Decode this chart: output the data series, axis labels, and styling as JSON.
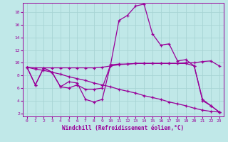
{
  "xlabel": "Windchill (Refroidissement éolien,°C)",
  "bg_color": "#c0e8e8",
  "grid_color": "#a8d4d4",
  "line_color": "#990099",
  "xlim": [
    -0.5,
    23.5
  ],
  "ylim": [
    1.5,
    19.5
  ],
  "xticks": [
    0,
    1,
    2,
    3,
    4,
    5,
    6,
    7,
    8,
    9,
    10,
    11,
    12,
    13,
    14,
    15,
    16,
    17,
    18,
    19,
    20,
    21,
    22,
    23
  ],
  "yticks": [
    2,
    4,
    6,
    8,
    10,
    12,
    14,
    16,
    18
  ],
  "series": [
    [
      9.3,
      6.5,
      9.2,
      8.5,
      6.2,
      7.0,
      6.8,
      4.2,
      3.8,
      4.2,
      9.7,
      16.7,
      17.5,
      19.0,
      19.3,
      14.6,
      12.8,
      13.0,
      10.3,
      10.5,
      9.5,
      4.2,
      3.2,
      2.2
    ],
    [
      9.3,
      6.5,
      9.2,
      8.5,
      6.2,
      6.0,
      6.5,
      5.8,
      5.8,
      6.0,
      9.7,
      9.8,
      9.8,
      9.9,
      9.9,
      9.9,
      9.9,
      9.9,
      9.9,
      9.9,
      9.5,
      4.0,
      3.2,
      2.2
    ],
    [
      9.3,
      9.2,
      9.2,
      9.2,
      9.2,
      9.2,
      9.2,
      9.2,
      9.2,
      9.3,
      9.5,
      9.7,
      9.8,
      9.9,
      9.9,
      9.9,
      9.9,
      9.9,
      9.9,
      10.0,
      10.0,
      10.2,
      10.3,
      9.5
    ],
    [
      9.3,
      9.0,
      8.8,
      8.5,
      8.2,
      7.8,
      7.5,
      7.2,
      6.8,
      6.5,
      6.2,
      5.8,
      5.5,
      5.2,
      4.8,
      4.5,
      4.2,
      3.8,
      3.5,
      3.2,
      2.8,
      2.5,
      2.3,
      2.2
    ]
  ]
}
